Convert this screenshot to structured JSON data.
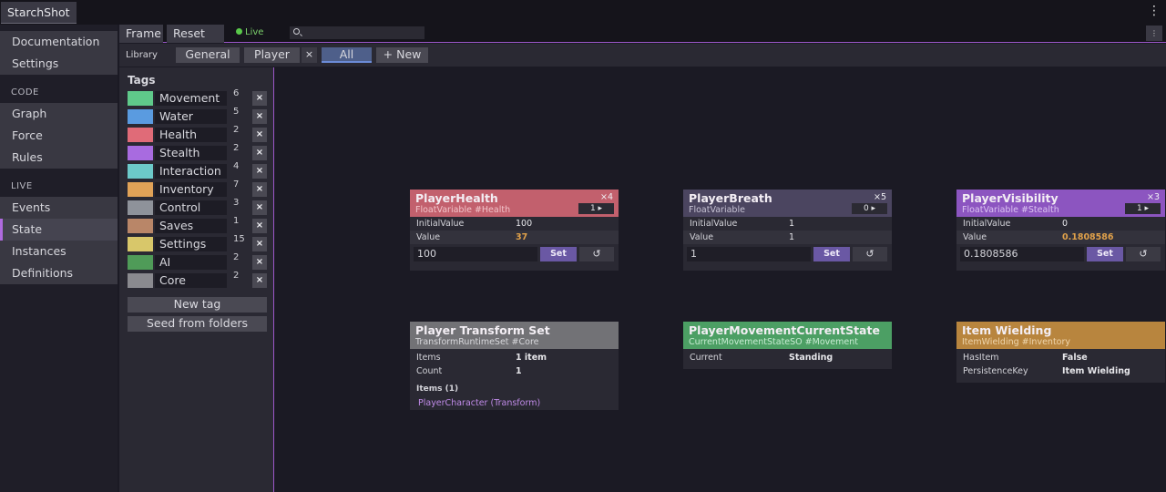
{
  "app": {
    "title": "StarchShot"
  },
  "sidebar": {
    "top_items": [
      {
        "label": "Documentation"
      },
      {
        "label": "Settings"
      }
    ],
    "sections": [
      {
        "title": "CODE",
        "items": [
          {
            "label": "Graph"
          },
          {
            "label": "Force"
          },
          {
            "label": "Rules"
          }
        ]
      },
      {
        "title": "LIVE",
        "items": [
          {
            "label": "Events"
          },
          {
            "label": "State",
            "active": true
          },
          {
            "label": "Instances"
          },
          {
            "label": "Definitions"
          }
        ]
      }
    ]
  },
  "toolbar": {
    "frame_label": "Frame",
    "reset_all_label": "Reset All",
    "live_label": "Live",
    "search_placeholder": "",
    "menu_icon": "dots-icon"
  },
  "tabs": {
    "library_label": "Library",
    "items": [
      {
        "label": "General"
      },
      {
        "label": "Player"
      },
      {
        "label": "All",
        "active": true
      },
      {
        "label": "+ New"
      }
    ],
    "close_symbol": "×"
  },
  "tags": {
    "title": "Tags",
    "delete_symbol": "×",
    "items": [
      {
        "name": "Movement",
        "count": "6",
        "color": "#5fc98a"
      },
      {
        "name": "Water",
        "count": "5",
        "color": "#5a9be0"
      },
      {
        "name": "Health",
        "count": "2",
        "color": "#e06b78"
      },
      {
        "name": "Stealth",
        "count": "2",
        "color": "#a86be0"
      },
      {
        "name": "Interaction",
        "count": "4",
        "color": "#6cc9c9"
      },
      {
        "name": "Inventory",
        "count": "7",
        "color": "#e0a257"
      },
      {
        "name": "Control",
        "count": "3",
        "color": "#8e929a"
      },
      {
        "name": "Saves",
        "count": "1",
        "color": "#b98668"
      },
      {
        "name": "Settings",
        "count": "15",
        "color": "#d8c76a"
      },
      {
        "name": "AI",
        "count": "2",
        "color": "#4f9b58"
      },
      {
        "name": "Core",
        "count": "2",
        "color": "#8a8a8f"
      }
    ],
    "new_tag_label": "New tag",
    "seed_label": "Seed from folders"
  },
  "cards": {
    "player_health": {
      "title": "PlayerHealth",
      "subtitle": "FloatVariable  #Health",
      "mult": "×4",
      "badge": "1 ▸",
      "color": "#c2606d",
      "sub_color": "#f2c4ca",
      "initial_label": "InitialValue",
      "initial_value": "100",
      "value_label": "Value",
      "value": "37",
      "input_value": "100",
      "set_label": "Set",
      "reset_icon": "↺"
    },
    "player_breath": {
      "title": "PlayerBreath",
      "subtitle": "FloatVariable",
      "mult": "×5",
      "badge": "0 ▸",
      "color": "#4b4560",
      "sub_color": "#c7c3d4",
      "initial_label": "InitialValue",
      "initial_value": "1",
      "value_label": "Value",
      "value": "1",
      "input_value": "1",
      "set_label": "Set",
      "reset_icon": "↺"
    },
    "player_visibility": {
      "title": "PlayerVisibility",
      "subtitle": "FloatVariable  #Stealth",
      "mult": "×3",
      "badge": "1 ▸",
      "color": "#8c55c0",
      "sub_color": "#dcc4f2",
      "initial_label": "InitialValue",
      "initial_value": "0",
      "value_label": "Value",
      "value": "0.1808586",
      "input_value": "0.1808586",
      "set_label": "Set",
      "reset_icon": "↺"
    },
    "player_transform_set": {
      "title": "Player Transform Set",
      "subtitle": "TransformRuntimeSet  #Core",
      "color": "#727276",
      "sub_color": "#d7d7db",
      "items_label": "Items",
      "items_value": "1 item",
      "count_label": "Count",
      "count_value": "1",
      "items_title": "Items (1)",
      "item_link": "PlayerCharacter (Transform)"
    },
    "player_movement_state": {
      "title": "PlayerMovementCurrentState",
      "subtitle": "CurrentMovementStateSO  #Movement",
      "color": "#4c9f64",
      "sub_color": "#c8ecd3",
      "current_label": "Current",
      "current_value": "Standing"
    },
    "item_wielding": {
      "title": "Item Wielding",
      "subtitle": "ItemWielding  #Inventory",
      "color": "#b8853e",
      "sub_color": "#efd6ad",
      "has_item_label": "HasItem",
      "has_item_value": "False",
      "persistence_label": "PersistenceKey",
      "persistence_value": "Item Wielding"
    }
  }
}
